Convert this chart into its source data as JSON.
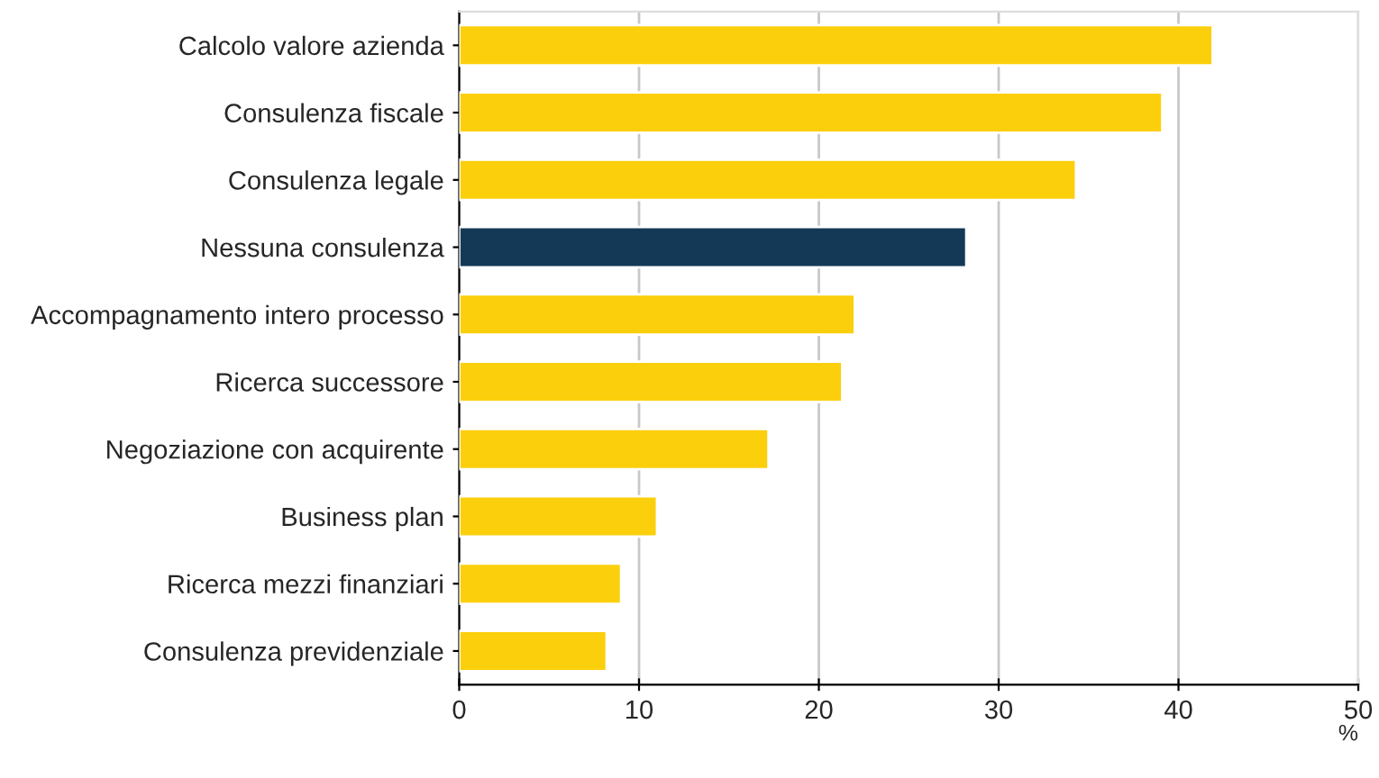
{
  "chart_data": {
    "type": "bar",
    "orientation": "horizontal",
    "categories": [
      "Calcolo valore azienda",
      "Consulenza fiscale",
      "Consulenza legale",
      "Nessuna consulenza",
      "Accompagnamento intero processo",
      "Ricerca successore",
      "Negoziazione con acquirente",
      "Business plan",
      "Ricerca mezzi finanziari",
      "Consulenza previdenziale"
    ],
    "values": [
      41.9,
      39.1,
      34.3,
      28.2,
      22.0,
      21.3,
      17.2,
      11.0,
      9.0,
      8.2
    ],
    "colors": [
      "#fccf0c",
      "#fccf0c",
      "#fccf0c",
      "#143957",
      "#fccf0c",
      "#fccf0c",
      "#fccf0c",
      "#fccf0c",
      "#fccf0c",
      "#fccf0c"
    ],
    "xlabel": "%",
    "xlim": [
      0,
      50
    ],
    "xticks": [
      0,
      10,
      20,
      30,
      40,
      50
    ],
    "grid": "x"
  }
}
